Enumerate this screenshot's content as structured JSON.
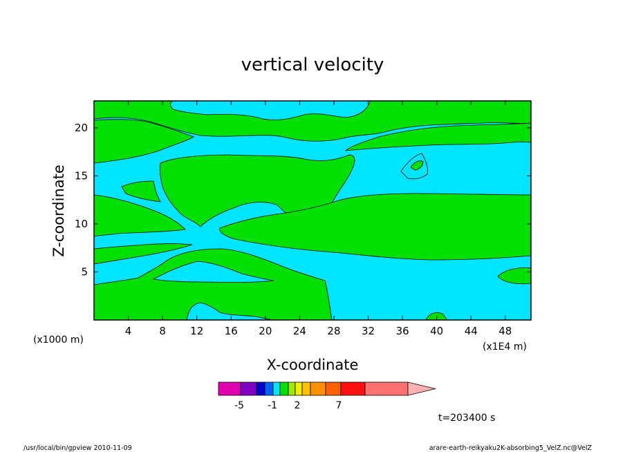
{
  "chart_data": {
    "type": "heatmap",
    "title": "vertical velocity",
    "xlabel": "X-coordinate",
    "ylabel": "Z-coordinate",
    "x_unit_left": "(x1000 m)",
    "x_unit_right": "(x1E4 m)",
    "xlim": [
      0,
      51
    ],
    "ylim": [
      0,
      22.8
    ],
    "x_ticks": [
      4,
      8,
      12,
      16,
      20,
      24,
      28,
      32,
      36,
      40,
      44,
      48
    ],
    "y_ticks": [
      5,
      10,
      15,
      20
    ],
    "background_color": "#00e5ff",
    "positive_color": "#00e000",
    "colorbar": {
      "colors": [
        "#e000b0",
        "#8000c0",
        "#0000d0",
        "#0060ff",
        "#00e5ff",
        "#00e000",
        "#a0e800",
        "#f0f000",
        "#ffc000",
        "#ff9000",
        "#ff6000",
        "#ff1010",
        "#ff7070",
        "#ffb0b0"
      ],
      "labels": [
        "-5",
        "-1",
        "2",
        "7"
      ]
    },
    "time_label": "t=203400 s"
  },
  "footer": {
    "left": "/usr/local/bin/gpview   2010-11-09",
    "right": "arare-earth-reikyaku2K-absorbing5_VelZ.nc@VelZ"
  }
}
